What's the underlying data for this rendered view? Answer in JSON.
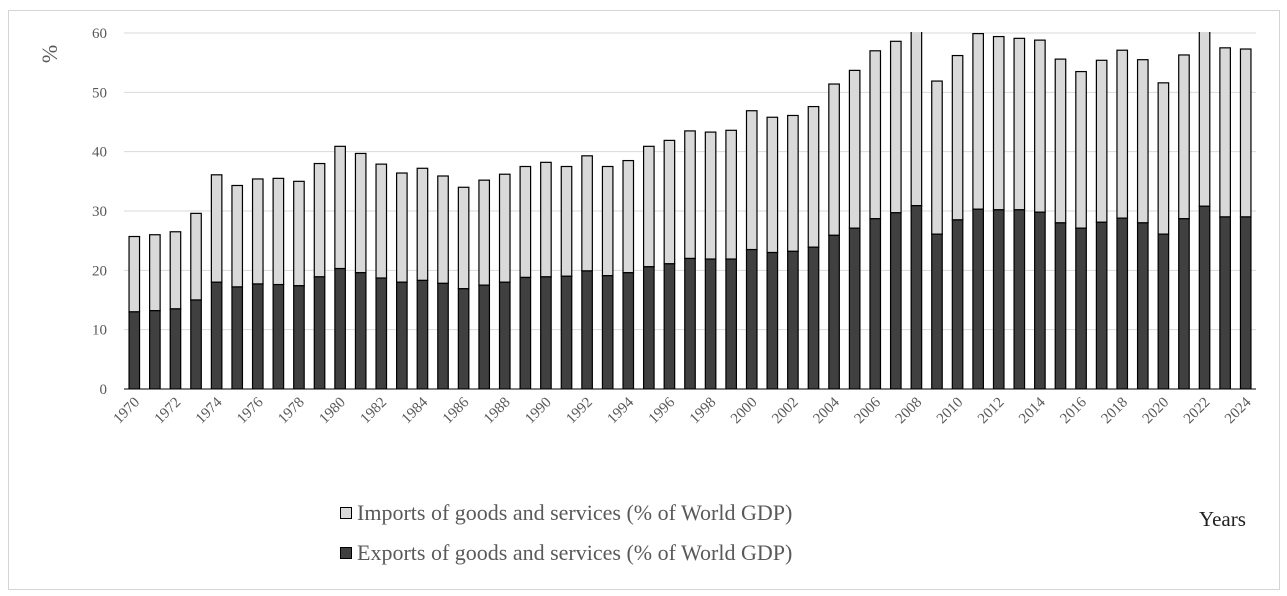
{
  "chart_data": {
    "type": "bar",
    "stacked": true,
    "ylabel": "%",
    "xlabel": "Years",
    "ylim": [
      0,
      60
    ],
    "yticks": [
      0,
      10,
      20,
      30,
      40,
      50,
      60
    ],
    "grid": true,
    "legend_position": "bottom",
    "categories": [
      "1970",
      "1971",
      "1972",
      "1973",
      "1974",
      "1975",
      "1976",
      "1977",
      "1978",
      "1979",
      "1980",
      "1981",
      "1982",
      "1983",
      "1984",
      "1985",
      "1986",
      "1987",
      "1988",
      "1989",
      "1990",
      "1991",
      "1992",
      "1993",
      "1994",
      "1995",
      "1996",
      "1997",
      "1998",
      "1999",
      "2000",
      "2001",
      "2002",
      "2003",
      "2004",
      "2005",
      "2006",
      "2007",
      "2008",
      "2009",
      "2010",
      "2011",
      "2012",
      "2013",
      "2014",
      "2015",
      "2016",
      "2017",
      "2018",
      "2019",
      "2020",
      "2021",
      "2022",
      "2023",
      "2024"
    ],
    "x_tick_labels": [
      "1970",
      "1972",
      "1974",
      "1976",
      "1978",
      "1980",
      "1982",
      "1984",
      "1986",
      "1988",
      "1990",
      "1992",
      "1994",
      "1996",
      "1998",
      "2000",
      "2002",
      "2004",
      "2006",
      "2008",
      "2010",
      "2012",
      "2014",
      "2016",
      "2018",
      "2020",
      "2022",
      "2024"
    ],
    "series": [
      {
        "name": "Exports of goods and services (% of World GDP)",
        "color": "#404040",
        "values": [
          13.0,
          13.2,
          13.5,
          15.0,
          18.0,
          17.2,
          17.7,
          17.6,
          17.4,
          18.9,
          20.3,
          19.6,
          18.7,
          18.0,
          18.3,
          17.8,
          16.9,
          17.5,
          18.0,
          18.8,
          18.9,
          19.0,
          19.9,
          19.1,
          19.6,
          20.6,
          21.1,
          22.0,
          21.9,
          21.9,
          23.5,
          23.0,
          23.2,
          23.9,
          25.9,
          27.1,
          28.7,
          29.7,
          30.9,
          26.1,
          28.5,
          30.3,
          30.2,
          30.2,
          29.8,
          28.0,
          27.1,
          28.1,
          28.8,
          28.0,
          26.1,
          28.7,
          30.8,
          29.0,
          29.0
        ]
      },
      {
        "name": "Imports of goods and services (% of World GDP)",
        "color": "#d9d9d9",
        "values": [
          12.7,
          12.8,
          13.0,
          14.6,
          18.1,
          17.1,
          17.7,
          17.9,
          17.6,
          19.1,
          20.6,
          20.1,
          19.2,
          18.4,
          18.9,
          18.1,
          17.1,
          17.7,
          18.2,
          18.7,
          19.3,
          18.5,
          19.4,
          18.4,
          18.9,
          20.3,
          20.8,
          21.5,
          21.4,
          21.7,
          23.4,
          22.8,
          22.9,
          23.7,
          25.5,
          26.6,
          28.3,
          28.9,
          30.3,
          25.8,
          27.7,
          29.6,
          29.2,
          28.9,
          29.0,
          27.6,
          26.4,
          27.3,
          28.3,
          27.5,
          25.5,
          27.6,
          30.1,
          28.5,
          28.3
        ]
      }
    ]
  }
}
